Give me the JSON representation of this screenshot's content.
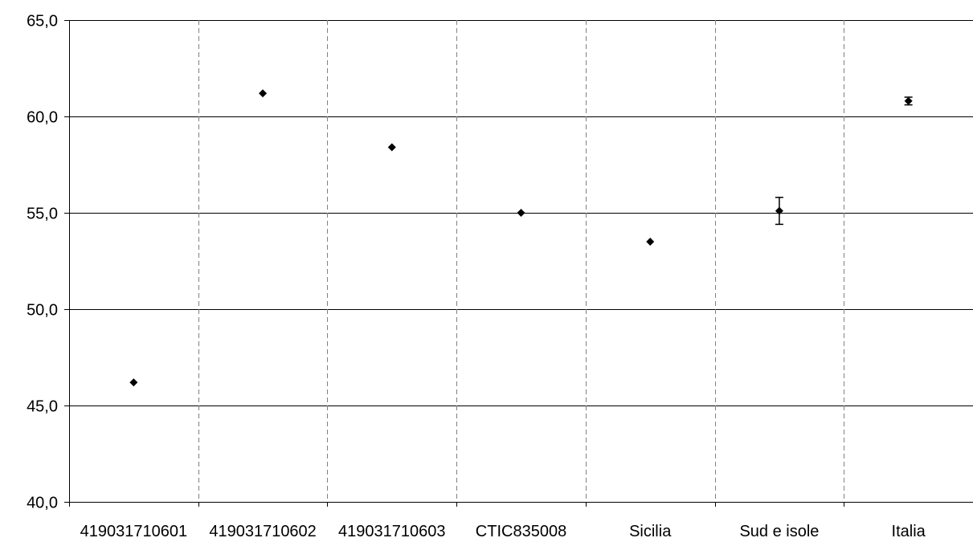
{
  "chart_data": {
    "type": "scatter",
    "title": "",
    "xlabel": "",
    "ylabel": "",
    "ylim": [
      40,
      65
    ],
    "yticks": [
      40,
      45,
      50,
      55,
      60,
      65
    ],
    "ytick_labels": [
      "40,0",
      "45,0",
      "50,0",
      "55,0",
      "60,0",
      "65,0"
    ],
    "categories": [
      "419031710601",
      "419031710602",
      "419031710603",
      "CTIC835008",
      "Sicilia",
      "Sud e isole",
      "Italia"
    ],
    "values": [
      46.2,
      61.2,
      58.4,
      55.0,
      53.5,
      55.1,
      60.8
    ],
    "error_low": [
      null,
      null,
      null,
      null,
      null,
      54.4,
      60.6
    ],
    "error_high": [
      null,
      null,
      null,
      null,
      null,
      55.8,
      61.0
    ],
    "grid": {
      "horizontal": true,
      "vertical": "dashed"
    },
    "marker": "diamond",
    "colors": {
      "marker": "#000000",
      "grid": "#000000",
      "vgrid": "#808080",
      "axis": "#000000"
    }
  }
}
